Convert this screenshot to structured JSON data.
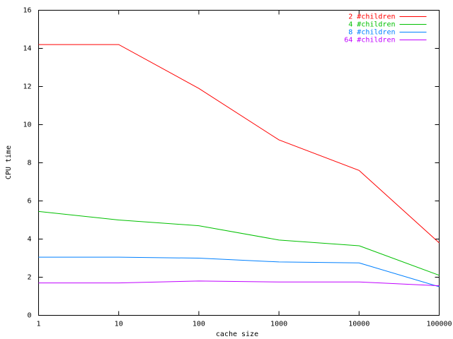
{
  "chart_data": {
    "type": "line",
    "x_label": "cache size",
    "y_label": "CPU time",
    "x": [
      1,
      10,
      100,
      1000,
      10000,
      100000
    ],
    "series": [
      {
        "name": "2 #children",
        "color": "#ff0000",
        "values": [
          14.2,
          14.2,
          11.9,
          9.2,
          7.6,
          3.8
        ]
      },
      {
        "name": "4 #children",
        "color": "#00c000",
        "values": [
          5.45,
          5.0,
          4.7,
          3.95,
          3.65,
          2.1
        ]
      },
      {
        "name": "8 #children",
        "color": "#0080ff",
        "values": [
          3.05,
          3.05,
          3.0,
          2.8,
          2.75,
          1.5
        ]
      },
      {
        "name": "64 #children",
        "color": "#c000ff",
        "values": [
          1.7,
          1.7,
          1.8,
          1.75,
          1.75,
          1.55
        ]
      }
    ],
    "xscale": "log",
    "xlim": [
      1,
      100000
    ],
    "xticks": [
      1,
      10,
      100,
      1000,
      10000,
      100000
    ],
    "ylim": [
      0,
      16
    ],
    "yticks": [
      0,
      2,
      4,
      6,
      8,
      10,
      12,
      14,
      16
    ],
    "grid": false,
    "legend": "top-right"
  }
}
